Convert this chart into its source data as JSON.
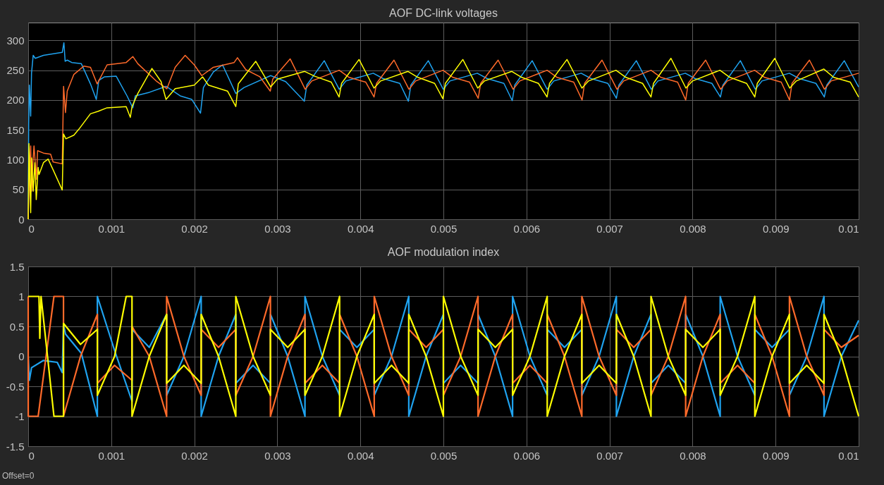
{
  "chart_data": [
    {
      "type": "line",
      "title": "AOF DC-link voltages",
      "xlim": [
        0,
        0.01
      ],
      "xticks": [
        0,
        0.001,
        0.002,
        0.003,
        0.004,
        0.005,
        0.006,
        0.007,
        0.008,
        0.009,
        0.01
      ],
      "ylim": [
        0,
        330
      ],
      "yticks": [
        0,
        50,
        100,
        150,
        200,
        250,
        300
      ],
      "grid": true,
      "series": [
        {
          "color": "#1fa3f0",
          "x": [
            0,
            6e-06,
            1.4e-05,
            3e-05,
            4e-05,
            6e-05,
            8.5e-05,
            0.000184,
            0.00041,
            0.00043,
            0.000445,
            0.00047,
            0.000525,
            0.00064,
            0.00075,
            0.00082,
            0.00085,
            0.00092,
            0.00106,
            0.00119,
            0.00126,
            0.00129,
            0.00146,
            0.00166,
            0.00183,
            0.00197,
            0.002075,
            0.00211,
            0.00223,
            0.00234,
            0.0025,
            0.0026,
            0.00292,
            0.0031,
            0.003325,
            0.003355,
            0.003565,
            0.003745,
            0.003825,
            0.004155,
            0.004275,
            0.004475,
            0.004578,
            0.004608,
            0.004818,
            0.004998,
            0.005078,
            0.005408,
            0.005528,
            0.005728,
            0.005829,
            0.005859,
            0.006069,
            0.006249,
            0.006329,
            0.006659,
            0.006779,
            0.006979,
            0.007083,
            0.007113,
            0.007323,
            0.007503,
            0.007583,
            0.007913,
            0.008033,
            0.008233,
            0.008336,
            0.008366,
            0.008576,
            0.008756,
            0.008836,
            0.009166,
            0.009286,
            0.009486,
            0.009587,
            0.009617,
            0.009827,
            0.01
          ],
          "values": [
            0,
            159,
            225,
            173,
            245,
            275,
            270,
            275,
            280,
            296,
            265,
            267,
            263,
            261,
            227,
            201,
            233,
            239,
            240,
            207,
            187,
            207,
            213,
            223,
            207,
            201,
            178,
            221,
            247,
            259,
            211,
            221,
            241,
            231,
            198,
            225,
            266,
            218,
            232,
            245,
            236,
            228,
            198,
            225,
            266,
            218,
            232,
            245,
            236,
            228,
            199,
            225,
            266,
            218,
            232,
            245,
            236,
            228,
            203,
            225,
            266,
            218,
            232,
            245,
            236,
            228,
            205,
            225,
            266,
            218,
            232,
            245,
            236,
            228,
            205,
            225,
            266,
            222
          ]
        },
        {
          "color": "#ff6a2a",
          "x": [
            0,
            1.4e-05,
            3e-05,
            4e-05,
            6e-05,
            7e-05,
            9.9e-05,
            0.000113,
            0.000184,
            0.00027,
            0.0003,
            0.00041,
            0.000426,
            0.000449,
            0.00047,
            0.00055,
            0.00067,
            0.00075,
            0.00083,
            0.00095,
            0.00118,
            0.00126,
            0.00132,
            0.00155,
            0.00167,
            0.00177,
            0.00189,
            0.002,
            0.00209,
            0.00223,
            0.00248,
            0.00252,
            0.00262,
            0.00279,
            0.002915,
            0.002945,
            0.003155,
            0.003335,
            0.003415,
            0.003745,
            0.003865,
            0.004065,
            0.004165,
            0.004195,
            0.004405,
            0.004585,
            0.004665,
            0.004995,
            0.005115,
            0.005315,
            0.005419,
            0.005449,
            0.005659,
            0.005839,
            0.005919,
            0.006249,
            0.006369,
            0.006569,
            0.00667,
            0.0067,
            0.00691,
            0.00709,
            0.00717,
            0.0075,
            0.00762,
            0.00782,
            0.007918,
            0.007948,
            0.008158,
            0.008338,
            0.008418,
            0.008748,
            0.008868,
            0.009068,
            0.009168,
            0.009198,
            0.009408,
            0.009588,
            0.009668,
            0.01
          ],
          "values": [
            0,
            79,
            123,
            47,
            103,
            123,
            67,
            115,
            111,
            109,
            96,
            93,
            223,
            179,
            215,
            243,
            257,
            255,
            227,
            259,
            263,
            273,
            261,
            231,
            219,
            255,
            275,
            259,
            241,
            255,
            263,
            271,
            251,
            239,
            215,
            235,
            269,
            218,
            232,
            250,
            238,
            230,
            205,
            228,
            267,
            218,
            232,
            250,
            238,
            230,
            203,
            228,
            267,
            218,
            232,
            250,
            238,
            230,
            200,
            228,
            267,
            218,
            232,
            250,
            238,
            230,
            200,
            228,
            267,
            218,
            232,
            250,
            238,
            230,
            200,
            228,
            267,
            218,
            232,
            245
          ]
        },
        {
          "color": "#ffff00",
          "x": [
            0,
            9e-06,
            3e-05,
            4e-05,
            6e-05,
            8e-05,
            9.7e-05,
            0.00012,
            0.000131,
            0.000184,
            0.00024,
            0.0003,
            0.00041,
            0.000425,
            0.000454,
            0.00055,
            0.00061,
            0.00075,
            0.00084,
            0.00095,
            0.00118,
            0.00123,
            0.00125,
            0.00132,
            0.00149,
            0.0016,
            0.00166,
            0.00177,
            0.002,
            0.0021,
            0.00217,
            0.0024,
            0.0025,
            0.00253,
            0.00274,
            0.00292,
            0.003,
            0.00333,
            0.00345,
            0.00365,
            0.003744,
            0.003774,
            0.003984,
            0.004164,
            0.004244,
            0.004574,
            0.004694,
            0.004894,
            0.004994,
            0.005024,
            0.005234,
            0.005414,
            0.005494,
            0.005824,
            0.005944,
            0.006144,
            0.006248,
            0.006278,
            0.006488,
            0.006668,
            0.006748,
            0.007078,
            0.007198,
            0.007398,
            0.0075,
            0.00753,
            0.00774,
            0.00792,
            0.008,
            0.00833,
            0.00845,
            0.00865,
            0.00875,
            0.00878,
            0.00899,
            0.00917,
            0.00925,
            0.00958,
            0.0097,
            0.0099,
            0.01
          ],
          "values": [
            0,
            127,
            11,
            103,
            47,
            95,
            33,
            87,
            75,
            95,
            101,
            83,
            49,
            143,
            135,
            141,
            151,
            177,
            181,
            187,
            189,
            171,
            189,
            211,
            253,
            231,
            201,
            219,
            225,
            239,
            225,
            215,
            189,
            227,
            265,
            222,
            235,
            248,
            240,
            230,
            205,
            228,
            268,
            220,
            232,
            248,
            238,
            228,
            202,
            228,
            268,
            220,
            232,
            248,
            238,
            228,
            205,
            228,
            268,
            220,
            232,
            250,
            238,
            228,
            205,
            228,
            270,
            220,
            232,
            250,
            238,
            228,
            205,
            228,
            270,
            220,
            232,
            252,
            238,
            230,
            205
          ]
        }
      ]
    },
    {
      "type": "line",
      "title": "AOF modulation index",
      "xlim": [
        0,
        0.01
      ],
      "xticks": [
        0,
        0.001,
        0.002,
        0.003,
        0.004,
        0.005,
        0.006,
        0.007,
        0.008,
        0.009,
        0.01
      ],
      "ylim": [
        -1.5,
        1.5
      ],
      "yticks": [
        -1.5,
        -1,
        -0.5,
        0,
        0.5,
        1,
        1.5
      ],
      "grid": true,
      "annotations": [
        "Offset=0"
      ],
      "series": [
        {
          "color": "#1fa3f0",
          "x": [
            0,
            1.4e-05,
            4e-05,
            0.00018,
            0.00035,
            0.00041,
            0.000425,
            0.00045,
            0.00064,
            0.000833,
            0.000833,
            0.00104,
            0.00125,
            0.00125,
            0.001458,
            0.001667,
            0.001667,
            0.001875,
            0.002083,
            0.002083,
            0.002292,
            0.0025,
            0.0025,
            0.002708,
            0.002917,
            0.002917,
            0.003125,
            0.003333,
            0.003333,
            0.003542,
            0.00375,
            0.00375,
            0.003958,
            0.004167,
            0.004167,
            0.004375,
            0.004583,
            0.004583,
            0.004792,
            0.005,
            0.005,
            0.005208,
            0.005417,
            0.005417,
            0.005625,
            0.005833,
            0.005833,
            0.006042,
            0.00625,
            0.00625,
            0.006458,
            0.006667,
            0.006667,
            0.006875,
            0.007083,
            0.007083,
            0.007292,
            0.0075,
            0.0075,
            0.007708,
            0.007917,
            0.007917,
            0.008125,
            0.008333,
            0.008333,
            0.008542,
            0.00875,
            0.00875,
            0.008958,
            0.009167,
            0.009167,
            0.009375,
            0.009583,
            0.009583,
            0.009792,
            0.01
          ],
          "values": [
            0,
            -0.4,
            -0.19,
            -0.07,
            -0.1,
            -0.27,
            0.53,
            0.37,
            0.05,
            -1,
            1,
            0.1,
            -0.75,
            0.45,
            0.15,
            0.7,
            -0.65,
            0,
            1,
            -1,
            0,
            0.7,
            -0.45,
            -0.15,
            -0.45,
            0.7,
            0,
            -1,
            1,
            0,
            -0.65,
            0.45,
            0.15,
            0.45,
            -0.65,
            0,
            1,
            -1,
            0,
            0.7,
            -0.45,
            -0.15,
            -0.45,
            0.7,
            0,
            -1,
            1,
            0,
            -0.65,
            0.45,
            0.15,
            0.45,
            -0.65,
            0,
            1,
            -1,
            0,
            0.7,
            -0.45,
            -0.15,
            -0.45,
            0.7,
            0,
            -1,
            1,
            0,
            -0.65,
            0.45,
            0.15,
            0.45,
            -0.65,
            0,
            1,
            -1,
            0,
            0.6
          ]
        },
        {
          "color": "#ff6a2a",
          "x": [
            0,
            1e-06,
            0.0001,
            0.00012,
            0.00031,
            0.000425,
            0.000425,
            0.00063,
            0.000833,
            0.000833,
            0.00104,
            0.00125,
            0.00125,
            0.001458,
            0.001667,
            0.001667,
            0.001875,
            0.002083,
            0.002083,
            0.002292,
            0.0025,
            0.0025,
            0.002708,
            0.002917,
            0.002917,
            0.003125,
            0.003333,
            0.003333,
            0.003542,
            0.00375,
            0.00375,
            0.003958,
            0.004167,
            0.004167,
            0.004375,
            0.004583,
            0.004583,
            0.004792,
            0.005,
            0.005,
            0.005208,
            0.005417,
            0.005417,
            0.005625,
            0.005833,
            0.005833,
            0.006042,
            0.00625,
            0.00625,
            0.006458,
            0.006667,
            0.006667,
            0.006875,
            0.007083,
            0.007083,
            0.007292,
            0.0075,
            0.0075,
            0.007708,
            0.007917,
            0.007917,
            0.008125,
            0.008333,
            0.008333,
            0.008542,
            0.00875,
            0.00875,
            0.008958,
            0.009167,
            0.009167,
            0.009375,
            0.009583,
            0.009583,
            0.009792,
            0.01
          ],
          "values": [
            1,
            -1,
            -1,
            -1,
            1,
            1,
            -1,
            0,
            0.7,
            -0.45,
            -0.15,
            -0.4,
            0.5,
            0,
            -1,
            1,
            0,
            -0.65,
            0.45,
            0.15,
            0.45,
            -0.65,
            0,
            1,
            -1,
            0,
            0.7,
            -0.45,
            -0.15,
            -0.45,
            0.7,
            0,
            -1,
            1,
            0,
            -0.65,
            0.45,
            0.15,
            0.45,
            -0.65,
            0,
            1,
            -1,
            0,
            0.7,
            -0.45,
            -0.15,
            -0.45,
            0.7,
            0,
            -1,
            1,
            0,
            -0.65,
            0.45,
            0.15,
            0.45,
            -0.65,
            0,
            1,
            -1,
            0,
            0.7,
            -0.45,
            -0.15,
            -0.45,
            0.7,
            0,
            -1,
            1,
            0,
            -0.65,
            0.45,
            0.15,
            0.35
          ]
        },
        {
          "color": "#ffff00",
          "x": [
            0,
            0.00013,
            0.00014,
            0.000155,
            0.00031,
            0.000425,
            0.000425,
            0.00063,
            0.000833,
            0.000833,
            0.00104,
            0.00118,
            0.00125,
            0.00125,
            0.001458,
            0.001667,
            0.001667,
            0.001875,
            0.002083,
            0.002083,
            0.002292,
            0.0025,
            0.0025,
            0.002708,
            0.002917,
            0.002917,
            0.003125,
            0.003333,
            0.003333,
            0.003542,
            0.00375,
            0.00375,
            0.003958,
            0.004167,
            0.004167,
            0.004375,
            0.004583,
            0.004583,
            0.004792,
            0.005,
            0.005,
            0.005208,
            0.005417,
            0.005417,
            0.005625,
            0.005833,
            0.005833,
            0.006042,
            0.00625,
            0.00625,
            0.006458,
            0.006667,
            0.006667,
            0.006875,
            0.007083,
            0.007083,
            0.007292,
            0.0075,
            0.0075,
            0.007708,
            0.007917,
            0.007917,
            0.008125,
            0.008333,
            0.008333,
            0.008542,
            0.00875,
            0.00875,
            0.008958,
            0.009167,
            0.009167,
            0.009375,
            0.009583,
            0.009583,
            0.009792,
            0.01
          ],
          "values": [
            1,
            1,
            0.3,
            1,
            -1,
            -1,
            0.55,
            0.2,
            0.45,
            -0.65,
            0,
            1,
            1,
            -1,
            0,
            0.7,
            -0.45,
            -0.15,
            -0.45,
            0.7,
            0,
            -1,
            1,
            0,
            -0.65,
            0.45,
            0.15,
            0.45,
            -0.65,
            0,
            1,
            -1,
            0,
            0.7,
            -0.45,
            -0.15,
            -0.45,
            0.7,
            0,
            -1,
            1,
            0,
            -0.65,
            0.45,
            0.15,
            0.45,
            -0.65,
            0,
            1,
            -1,
            0,
            0.7,
            -0.45,
            -0.15,
            -0.45,
            0.7,
            0,
            -1,
            1,
            0,
            -0.65,
            0.45,
            0.15,
            0.45,
            -0.65,
            0,
            1,
            -1,
            0,
            0.7,
            -0.45,
            -0.15,
            -0.45,
            0.7,
            0,
            -1
          ]
        }
      ]
    }
  ]
}
